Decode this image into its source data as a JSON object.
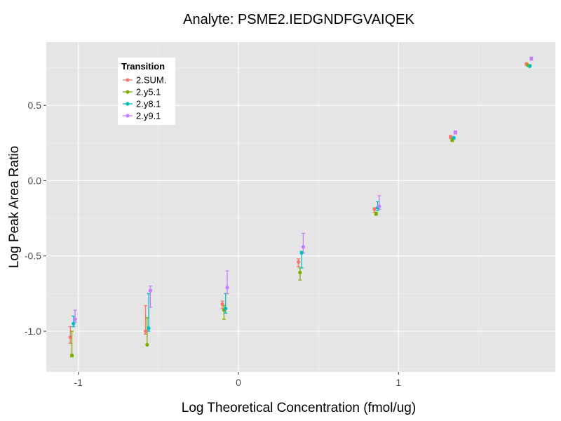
{
  "chart_data": {
    "type": "scatter",
    "title": "Analyte: PSME2.IEDGNDFGVAIQEK",
    "xlabel": "Log Theoretical Concentration (fmol/ug)",
    "ylabel": "Log Peak Area Ratio",
    "xlim": [
      -1.2,
      1.98
    ],
    "ylim": [
      -1.27,
      0.92
    ],
    "x_ticks": [
      {
        "value": -1,
        "label": "-1"
      },
      {
        "value": 0,
        "label": "0"
      },
      {
        "value": 1,
        "label": "1"
      }
    ],
    "y_ticks": [
      {
        "value": -1.0,
        "label": "-1.0"
      },
      {
        "value": -0.5,
        "label": "-0.5"
      },
      {
        "value": 0.0,
        "label": "0.0"
      },
      {
        "value": 0.5,
        "label": "0.5"
      }
    ],
    "grid": true,
    "legend": {
      "title": "Transition",
      "position": "top-left"
    },
    "series": [
      {
        "name": "2.SUM.",
        "color": "#f8766d",
        "points": [
          {
            "x": -1.05,
            "y": -1.04,
            "lo": -1.08,
            "hi": -0.97
          },
          {
            "x": -0.58,
            "y": -1.0,
            "lo": -1.02,
            "hi": -0.83
          },
          {
            "x": -0.1,
            "y": -0.82,
            "lo": -0.85,
            "hi": -0.8
          },
          {
            "x": 0.375,
            "y": -0.54,
            "lo": -0.57,
            "hi": -0.52
          },
          {
            "x": 0.85,
            "y": -0.19,
            "lo": -0.21,
            "hi": -0.18
          },
          {
            "x": 1.325,
            "y": 0.29,
            "lo": 0.28,
            "hi": 0.3
          },
          {
            "x": 1.8,
            "y": 0.775,
            "lo": 0.765,
            "hi": 0.78
          }
        ]
      },
      {
        "name": "2.y5.1",
        "color": "#7cae00",
        "points": [
          {
            "x": -1.04,
            "y": -1.16,
            "lo": -1.17,
            "hi": -1.0
          },
          {
            "x": -0.57,
            "y": -1.09,
            "lo": -1.09,
            "hi": -0.91
          },
          {
            "x": -0.09,
            "y": -0.86,
            "lo": -0.92,
            "hi": -0.83
          },
          {
            "x": 0.385,
            "y": -0.61,
            "lo": -0.66,
            "hi": -0.58
          },
          {
            "x": 0.86,
            "y": -0.22,
            "lo": -0.23,
            "hi": -0.21
          },
          {
            "x": 1.335,
            "y": 0.27,
            "lo": 0.26,
            "hi": 0.28
          },
          {
            "x": 1.81,
            "y": 0.765,
            "lo": 0.76,
            "hi": 0.77
          }
        ]
      },
      {
        "name": "2.y8.1",
        "color": "#00bfc4",
        "points": [
          {
            "x": -1.03,
            "y": -0.95,
            "lo": -0.97,
            "hi": -0.9
          },
          {
            "x": -0.56,
            "y": -0.98,
            "lo": -1.0,
            "hi": -0.75
          },
          {
            "x": -0.08,
            "y": -0.85,
            "lo": -0.88,
            "hi": -0.75
          },
          {
            "x": 0.395,
            "y": -0.48,
            "lo": -0.58,
            "hi": -0.47
          },
          {
            "x": 0.87,
            "y": -0.18,
            "lo": -0.2,
            "hi": -0.14
          },
          {
            "x": 1.345,
            "y": 0.285,
            "lo": 0.275,
            "hi": 0.29
          },
          {
            "x": 1.82,
            "y": 0.76,
            "lo": 0.755,
            "hi": 0.77
          }
        ]
      },
      {
        "name": "2.y9.1",
        "color": "#c77cff",
        "points": [
          {
            "x": -1.02,
            "y": -0.92,
            "lo": -0.94,
            "hi": -0.86
          },
          {
            "x": -0.55,
            "y": -0.73,
            "lo": -0.84,
            "hi": -0.7
          },
          {
            "x": -0.07,
            "y": -0.71,
            "lo": -0.75,
            "hi": -0.6
          },
          {
            "x": 0.405,
            "y": -0.44,
            "lo": -0.48,
            "hi": -0.35
          },
          {
            "x": 0.88,
            "y": -0.17,
            "lo": -0.19,
            "hi": -0.1
          },
          {
            "x": 1.355,
            "y": 0.32,
            "lo": 0.31,
            "hi": 0.33
          },
          {
            "x": 1.83,
            "y": 0.81,
            "lo": 0.8,
            "hi": 0.82
          }
        ]
      }
    ]
  }
}
